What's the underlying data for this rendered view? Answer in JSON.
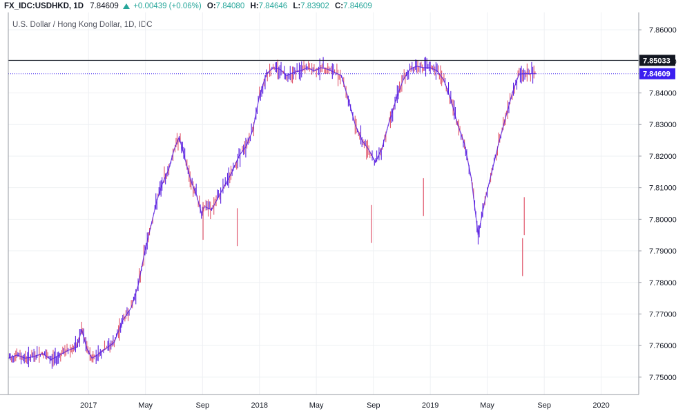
{
  "header": {
    "symbol": "FX_IDC:USDHKD, 1D",
    "last": "7.84609",
    "change": "+0.00439 (+0.06%)",
    "o_label": "O:",
    "o_value": "7.84080",
    "h_label": "H:",
    "h_value": "7.84646",
    "l_label": "L:",
    "l_value": "7.83902",
    "c_label": "C:",
    "c_value": "7.84609",
    "up_color": "#26a69a"
  },
  "legend": {
    "title": "U.S. Dollar / Hong Kong Dollar, 1D, IDC"
  },
  "chart_data": {
    "type": "line",
    "title": "U.S. Dollar / Hong Kong Dollar, 1D, IDC",
    "xlabel": "",
    "ylabel": "",
    "ylim": [
      7.7445,
      7.8655
    ],
    "y_ticks": [
      "7.86000",
      "7.85000",
      "7.84000",
      "7.83000",
      "7.82000",
      "7.81000",
      "7.80000",
      "7.79000",
      "7.78000",
      "7.77000",
      "7.76000",
      "7.75000"
    ],
    "x_ticks": [
      {
        "label": "2017",
        "t": 2017.0
      },
      {
        "label": "May",
        "t": 2017.333
      },
      {
        "label": "Sep",
        "t": 2017.667
      },
      {
        "label": "2018",
        "t": 2018.0
      },
      {
        "label": "May",
        "t": 2018.333
      },
      {
        "label": "Sep",
        "t": 2018.667
      },
      {
        "label": "2019",
        "t": 2019.0
      },
      {
        "label": "May",
        "t": 2019.333
      },
      {
        "label": "Sep",
        "t": 2019.667
      },
      {
        "label": "2020",
        "t": 2020.0
      }
    ],
    "xlim": [
      2016.53,
      2020.22
    ],
    "bar_colors": {
      "up": "#5b21e0",
      "down": "#e0556b"
    },
    "grid": true,
    "price_lines": [
      {
        "label": "7.85033",
        "value": 7.85033,
        "color": "#131722",
        "style": "solid"
      },
      {
        "label": "7.84609",
        "value": 7.84609,
        "color": "#3b1ef0",
        "style": "dotted"
      }
    ],
    "series": [
      {
        "x": [
          2016.53,
          2016.58,
          2016.63,
          2016.68,
          2016.73,
          2016.78,
          2016.83,
          2016.88,
          2016.93,
          2016.96,
          2016.99,
          2017.02,
          2017.05,
          2017.1,
          2017.15,
          2017.2,
          2017.25,
          2017.29,
          2017.33,
          2017.37,
          2017.4,
          2017.43,
          2017.47,
          2017.5,
          2017.53,
          2017.57,
          2017.6,
          2017.63,
          2017.66,
          2017.68,
          2017.72,
          2017.76,
          2017.8,
          2017.84,
          2017.88,
          2017.92,
          2017.96,
          2018.0,
          2018.04,
          2018.08,
          2018.12,
          2018.16,
          2018.2,
          2018.24,
          2018.28,
          2018.32,
          2018.36,
          2018.4,
          2018.44,
          2018.48,
          2018.52,
          2018.56,
          2018.6,
          2018.64,
          2018.66,
          2018.68,
          2018.72,
          2018.76,
          2018.8,
          2018.84,
          2018.88,
          2018.92,
          2018.96,
          2019.0,
          2019.04,
          2019.08,
          2019.12,
          2019.16,
          2019.2,
          2019.24,
          2019.28,
          2019.32,
          2019.36,
          2019.4,
          2019.44,
          2019.48,
          2019.52,
          2019.56,
          2019.6,
          2019.62
        ],
        "y": [
          7.756,
          7.757,
          7.756,
          7.7565,
          7.7575,
          7.7555,
          7.757,
          7.7585,
          7.7595,
          7.765,
          7.759,
          7.756,
          7.757,
          7.759,
          7.761,
          7.768,
          7.772,
          7.779,
          7.79,
          7.799,
          7.806,
          7.811,
          7.816,
          7.822,
          7.826,
          7.818,
          7.812,
          7.808,
          7.802,
          7.804,
          7.803,
          7.807,
          7.811,
          7.815,
          7.82,
          7.823,
          7.828,
          7.839,
          7.846,
          7.848,
          7.8475,
          7.8455,
          7.8465,
          7.847,
          7.848,
          7.847,
          7.848,
          7.8475,
          7.8465,
          7.8455,
          7.838,
          7.83,
          7.825,
          7.822,
          7.82,
          7.818,
          7.823,
          7.831,
          7.838,
          7.844,
          7.8475,
          7.8485,
          7.848,
          7.848,
          7.847,
          7.844,
          7.838,
          7.83,
          7.824,
          7.813,
          7.795,
          7.806,
          7.815,
          7.824,
          7.832,
          7.84,
          7.846,
          7.8461,
          7.8461,
          7.8461
        ]
      }
    ]
  },
  "axis": {
    "price_label_current": "7.84609",
    "price_label_high": "7.85033"
  }
}
